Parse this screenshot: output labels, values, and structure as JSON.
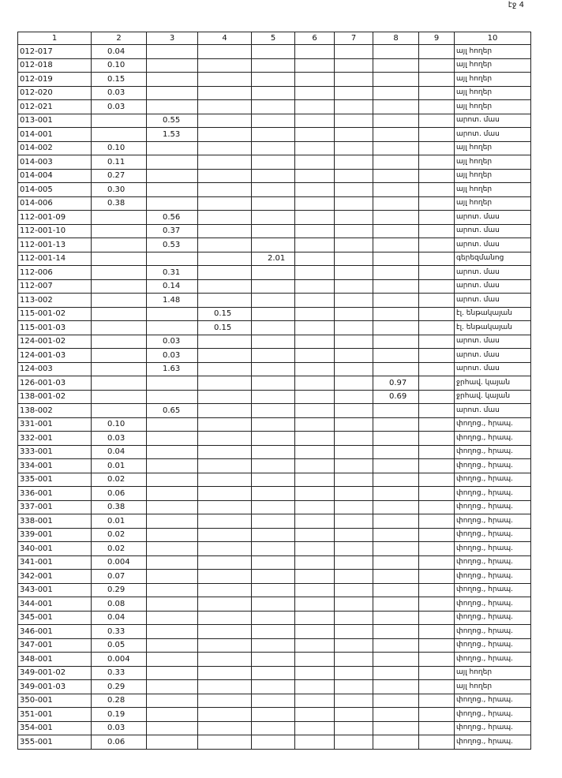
{
  "header": {
    "page_label": "էջ 4"
  },
  "table": {
    "columns": [
      "1",
      "2",
      "3",
      "4",
      "5",
      "6",
      "7",
      "8",
      "9",
      "10"
    ],
    "rows": [
      [
        "012-017",
        "0.04",
        null,
        null,
        null,
        null,
        null,
        null,
        null,
        "այլ հողեր"
      ],
      [
        "012-018",
        "0.10",
        null,
        null,
        null,
        null,
        null,
        null,
        null,
        "այլ հողեր"
      ],
      [
        "012-019",
        "0.15",
        null,
        null,
        null,
        null,
        null,
        null,
        null,
        "այլ հողեր"
      ],
      [
        "012-020",
        "0.03",
        null,
        null,
        null,
        null,
        null,
        null,
        null,
        "այլ հողեր"
      ],
      [
        "012-021",
        "0.03",
        null,
        null,
        null,
        null,
        null,
        null,
        null,
        "այլ հողեր"
      ],
      [
        "013-001",
        null,
        "0.55",
        null,
        null,
        null,
        null,
        null,
        null,
        "արոտ. մաս"
      ],
      [
        "014-001",
        null,
        "1.53",
        null,
        null,
        null,
        null,
        null,
        null,
        "արոտ. մաս"
      ],
      [
        "014-002",
        "0.10",
        null,
        null,
        null,
        null,
        null,
        null,
        null,
        "այլ հողեր"
      ],
      [
        "014-003",
        "0.11",
        null,
        null,
        null,
        null,
        null,
        null,
        null,
        "այլ հողեր"
      ],
      [
        "014-004",
        "0.27",
        null,
        null,
        null,
        null,
        null,
        null,
        null,
        "այլ հողեր"
      ],
      [
        "014-005",
        "0.30",
        null,
        null,
        null,
        null,
        null,
        null,
        null,
        "այլ հողեր"
      ],
      [
        "014-006",
        "0.38",
        null,
        null,
        null,
        null,
        null,
        null,
        null,
        "այլ հողեր"
      ],
      [
        "112-001-09",
        null,
        "0.56",
        null,
        null,
        null,
        null,
        null,
        null,
        "արոտ. մաս"
      ],
      [
        "112-001-10",
        null,
        "0.37",
        null,
        null,
        null,
        null,
        null,
        null,
        "արոտ. մաս"
      ],
      [
        "112-001-13",
        null,
        "0.53",
        null,
        null,
        null,
        null,
        null,
        null,
        "արոտ. մաս"
      ],
      [
        "112-001-14",
        null,
        null,
        null,
        "2.01",
        null,
        null,
        null,
        null,
        "գերեզմանոց"
      ],
      [
        "112-006",
        null,
        "0.31",
        null,
        null,
        null,
        null,
        null,
        null,
        "արոտ. մաս"
      ],
      [
        "112-007",
        null,
        "0.14",
        null,
        null,
        null,
        null,
        null,
        null,
        "արոտ. մաս"
      ],
      [
        "113-002",
        null,
        "1.48",
        null,
        null,
        null,
        null,
        null,
        null,
        "արոտ. մաս"
      ],
      [
        "115-001-02",
        null,
        null,
        "0.15",
        null,
        null,
        null,
        null,
        null,
        "էլ. ենթակայան"
      ],
      [
        "115-001-03",
        null,
        null,
        "0.15",
        null,
        null,
        null,
        null,
        null,
        "էլ. ենթակայան"
      ],
      [
        "124-001-02",
        null,
        "0.03",
        null,
        null,
        null,
        null,
        null,
        null,
        "արոտ. մաս"
      ],
      [
        "124-001-03",
        null,
        "0.03",
        null,
        null,
        null,
        null,
        null,
        null,
        "արոտ. մաս"
      ],
      [
        "124-003",
        null,
        "1.63",
        null,
        null,
        null,
        null,
        null,
        null,
        "արոտ. մաս"
      ],
      [
        "126-001-03",
        null,
        null,
        null,
        null,
        null,
        null,
        "0.97",
        null,
        "ջրհավ. կայան"
      ],
      [
        "138-001-02",
        null,
        null,
        null,
        null,
        null,
        null,
        "0.69",
        null,
        "ջրհավ. կայան"
      ],
      [
        "138-002",
        null,
        "0.65",
        null,
        null,
        null,
        null,
        null,
        null,
        "արոտ. մաս"
      ],
      [
        "331-001",
        "0.10",
        null,
        null,
        null,
        null,
        null,
        null,
        null,
        "փողոց., հրապ."
      ],
      [
        "332-001",
        "0.03",
        null,
        null,
        null,
        null,
        null,
        null,
        null,
        "փողոց., հրապ."
      ],
      [
        "333-001",
        "0.04",
        null,
        null,
        null,
        null,
        null,
        null,
        null,
        "փողոց., հրապ."
      ],
      [
        "334-001",
        "0.01",
        null,
        null,
        null,
        null,
        null,
        null,
        null,
        "փողոց., հրապ."
      ],
      [
        "335-001",
        "0.02",
        null,
        null,
        null,
        null,
        null,
        null,
        null,
        "փողոց., հրապ."
      ],
      [
        "336-001",
        "0.06",
        null,
        null,
        null,
        null,
        null,
        null,
        null,
        "փողոց., հրապ."
      ],
      [
        "337-001",
        "0.38",
        null,
        null,
        null,
        null,
        null,
        null,
        null,
        "փողոց., հրապ."
      ],
      [
        "338-001",
        "0.01",
        null,
        null,
        null,
        null,
        null,
        null,
        null,
        "փողոց., հրապ."
      ],
      [
        "339-001",
        "0.02",
        null,
        null,
        null,
        null,
        null,
        null,
        null,
        "փողոց., հրապ."
      ],
      [
        "340-001",
        "0.02",
        null,
        null,
        null,
        null,
        null,
        null,
        null,
        "փողոց., հրապ."
      ],
      [
        "341-001",
        "0.004",
        null,
        null,
        null,
        null,
        null,
        null,
        null,
        "փողոց., հրապ."
      ],
      [
        "342-001",
        "0.07",
        null,
        null,
        null,
        null,
        null,
        null,
        null,
        "փողոց., հրապ."
      ],
      [
        "343-001",
        "0.29",
        null,
        null,
        null,
        null,
        null,
        null,
        null,
        "փողոց., հրապ."
      ],
      [
        "344-001",
        "0.08",
        null,
        null,
        null,
        null,
        null,
        null,
        null,
        "փողոց., հրապ."
      ],
      [
        "345-001",
        "0.04",
        null,
        null,
        null,
        null,
        null,
        null,
        null,
        "փողոց., հրապ."
      ],
      [
        "346-001",
        "0.33",
        null,
        null,
        null,
        null,
        null,
        null,
        null,
        "փողոց., հրապ."
      ],
      [
        "347-001",
        "0.05",
        null,
        null,
        null,
        null,
        null,
        null,
        null,
        "փողոց., հրապ."
      ],
      [
        "348-001",
        "0.004",
        null,
        null,
        null,
        null,
        null,
        null,
        null,
        "փողոց., հրապ."
      ],
      [
        "349-001-02",
        "0.33",
        null,
        null,
        null,
        null,
        null,
        null,
        null,
        "այլ հողեր"
      ],
      [
        "349-001-03",
        "0.29",
        null,
        null,
        null,
        null,
        null,
        null,
        null,
        "այլ հողեր"
      ],
      [
        "350-001",
        "0.28",
        null,
        null,
        null,
        null,
        null,
        null,
        null,
        "փողոց., հրապ."
      ],
      [
        "351-001",
        "0.19",
        null,
        null,
        null,
        null,
        null,
        null,
        null,
        "փողոց., հրապ."
      ],
      [
        "354-001",
        "0.03",
        null,
        null,
        null,
        null,
        null,
        null,
        null,
        "փողոց., հրապ."
      ],
      [
        "355-001",
        "0.06",
        null,
        null,
        null,
        null,
        null,
        null,
        null,
        "փողոց., հրապ."
      ]
    ]
  }
}
